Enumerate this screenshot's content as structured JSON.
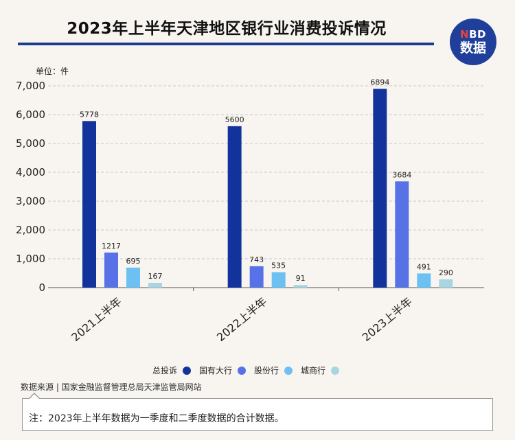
{
  "header": {
    "title": "2023年上半年天津地区银行业消费投诉情况",
    "logo_top": "BD",
    "logo_top_accent": "N",
    "logo_bottom": "数据"
  },
  "unit_label": "单位：件",
  "source_text": "数据来源 | 国家金融监督管理总局天津监管局网站",
  "note_text": "注：2023年上半年数据为一季度和二季度数据的合计数据。",
  "colors": {
    "总投诉": "#13339c",
    "国有大行": "#5672e6",
    "股份行": "#6cc0f2",
    "城商行": "#a9d5e2"
  },
  "chart_data": {
    "type": "bar",
    "categories": [
      "2021上半年",
      "2022上半年",
      "2023上半年"
    ],
    "series": [
      {
        "name": "总投诉",
        "values": [
          5778,
          5600,
          6894
        ]
      },
      {
        "name": "国有大行",
        "values": [
          1217,
          743,
          3684
        ]
      },
      {
        "name": "股份行",
        "values": [
          695,
          535,
          491
        ]
      },
      {
        "name": "城商行",
        "values": [
          167,
          91,
          290
        ]
      }
    ],
    "ylim": [
      0,
      7000
    ],
    "yticks": [
      0,
      1000,
      2000,
      3000,
      4000,
      5000,
      6000,
      7000
    ],
    "ytick_labels": [
      "0",
      "1,000",
      "2,000",
      "3,000",
      "4,000",
      "5,000",
      "6,000",
      "7,000"
    ],
    "grid": true,
    "legend_position": "bottom"
  }
}
